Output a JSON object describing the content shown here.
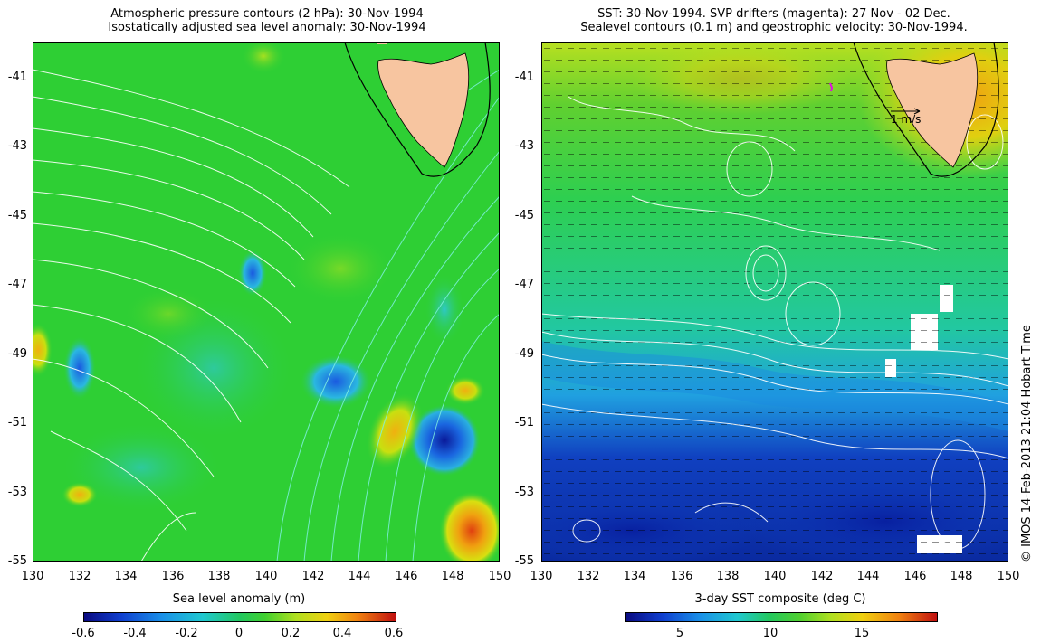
{
  "left_panel": {
    "title_line1": "Atmospheric pressure contours (2 hPa): 30-Nov-1994",
    "title_line2": "Isostatically adjusted sea level anomaly: 30-Nov-1994",
    "colorbar_title": "Sea level anomaly (m)",
    "colorbar_ticks": [
      "-0.6",
      "-0.4",
      "-0.2",
      "0",
      "0.2",
      "0.4",
      "0.6"
    ]
  },
  "right_panel": {
    "title_line1": "SST: 30-Nov-1994. SVP drifters (magenta): 27 Nov - 02 Dec.",
    "title_line2": "Sealevel contours (0.1 m) and geostrophic velocity: 30-Nov-1994.",
    "colorbar_title": "3-day SST composite (deg C)",
    "colorbar_ticks": [
      "5",
      "10",
      "15"
    ],
    "velocity_scale_label": "1 m/s"
  },
  "axes": {
    "lat_labels": [
      "-41",
      "-43",
      "-45",
      "-47",
      "-49",
      "-51",
      "-53",
      "-55"
    ],
    "lon_labels": [
      "130",
      "132",
      "134",
      "136",
      "138",
      "140",
      "142",
      "144",
      "146",
      "148",
      "150"
    ]
  },
  "credit": "© IMOS 14-Feb-2013 21:04 Hobart Time",
  "colors": {
    "sla_field": "#2ecf34",
    "sst_cold": "#0a2aa8",
    "sst_mid": "#22c85a",
    "sst_warm": "#d8e010",
    "land": "#f7c5a0",
    "pressure_contour": "#ffffff",
    "coast_line": "#000000"
  }
}
